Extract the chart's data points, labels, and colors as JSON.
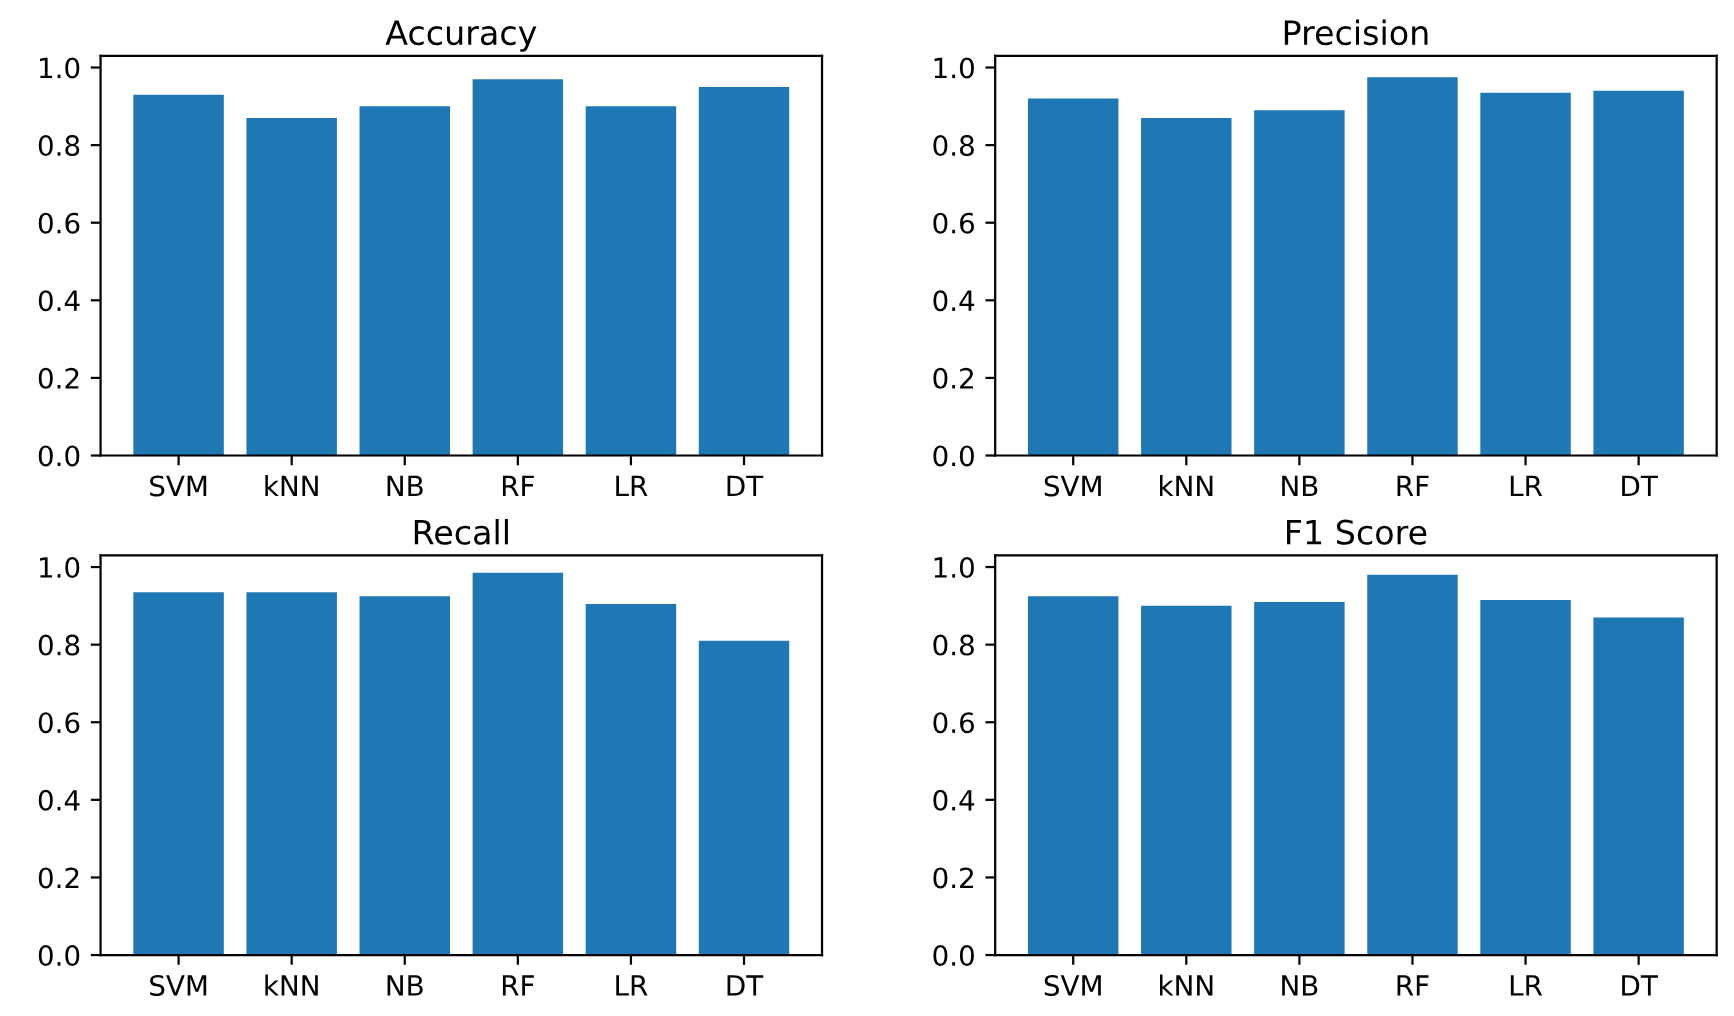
{
  "chart_data": [
    {
      "type": "bar",
      "title": "Accuracy",
      "categories": [
        "SVM",
        "kNN",
        "NB",
        "RF",
        "LR",
        "DT"
      ],
      "values": [
        0.93,
        0.87,
        0.9,
        0.97,
        0.9,
        0.95
      ],
      "color": "#1f77b4",
      "ylim": [
        0,
        1.03
      ],
      "yticks": [
        {
          "value": 0,
          "label": "0.0"
        },
        {
          "value": 0.2,
          "label": "0.2"
        },
        {
          "value": 0.4,
          "label": "0.4"
        },
        {
          "value": 0.6,
          "label": "0.6"
        },
        {
          "value": 0.8,
          "label": "0.8"
        },
        {
          "value": 1,
          "label": "1.0"
        }
      ],
      "grid": false
    },
    {
      "type": "bar",
      "title": "Precision",
      "categories": [
        "SVM",
        "kNN",
        "NB",
        "RF",
        "LR",
        "DT"
      ],
      "values": [
        0.92,
        0.87,
        0.89,
        0.975,
        0.935,
        0.94
      ],
      "color": "#1f77b4",
      "ylim": [
        0,
        1.03
      ],
      "yticks": [
        {
          "value": 0,
          "label": "0.0"
        },
        {
          "value": 0.2,
          "label": "0.2"
        },
        {
          "value": 0.4,
          "label": "0.4"
        },
        {
          "value": 0.6,
          "label": "0.6"
        },
        {
          "value": 0.8,
          "label": "0.8"
        },
        {
          "value": 1,
          "label": "1.0"
        }
      ],
      "grid": false
    },
    {
      "type": "bar",
      "title": "Recall",
      "categories": [
        "SVM",
        "kNN",
        "NB",
        "RF",
        "LR",
        "DT"
      ],
      "values": [
        0.935,
        0.935,
        0.925,
        0.985,
        0.905,
        0.81
      ],
      "color": "#1f77b4",
      "ylim": [
        0,
        1.03
      ],
      "yticks": [
        {
          "value": 0,
          "label": "0.0"
        },
        {
          "value": 0.2,
          "label": "0.2"
        },
        {
          "value": 0.4,
          "label": "0.4"
        },
        {
          "value": 0.6,
          "label": "0.6"
        },
        {
          "value": 0.8,
          "label": "0.8"
        },
        {
          "value": 1,
          "label": "1.0"
        }
      ],
      "grid": false
    },
    {
      "type": "bar",
      "title": "F1 Score",
      "categories": [
        "SVM",
        "kNN",
        "NB",
        "RF",
        "LR",
        "DT"
      ],
      "values": [
        0.925,
        0.9,
        0.91,
        0.98,
        0.915,
        0.87
      ],
      "color": "#1f77b4",
      "ylim": [
        0,
        1.03
      ],
      "yticks": [
        {
          "value": 0,
          "label": "0.0"
        },
        {
          "value": 0.2,
          "label": "0.2"
        },
        {
          "value": 0.4,
          "label": "0.4"
        },
        {
          "value": 0.6,
          "label": "0.6"
        },
        {
          "value": 0.8,
          "label": "0.8"
        },
        {
          "value": 1,
          "label": "1.0"
        }
      ],
      "grid": false
    }
  ]
}
